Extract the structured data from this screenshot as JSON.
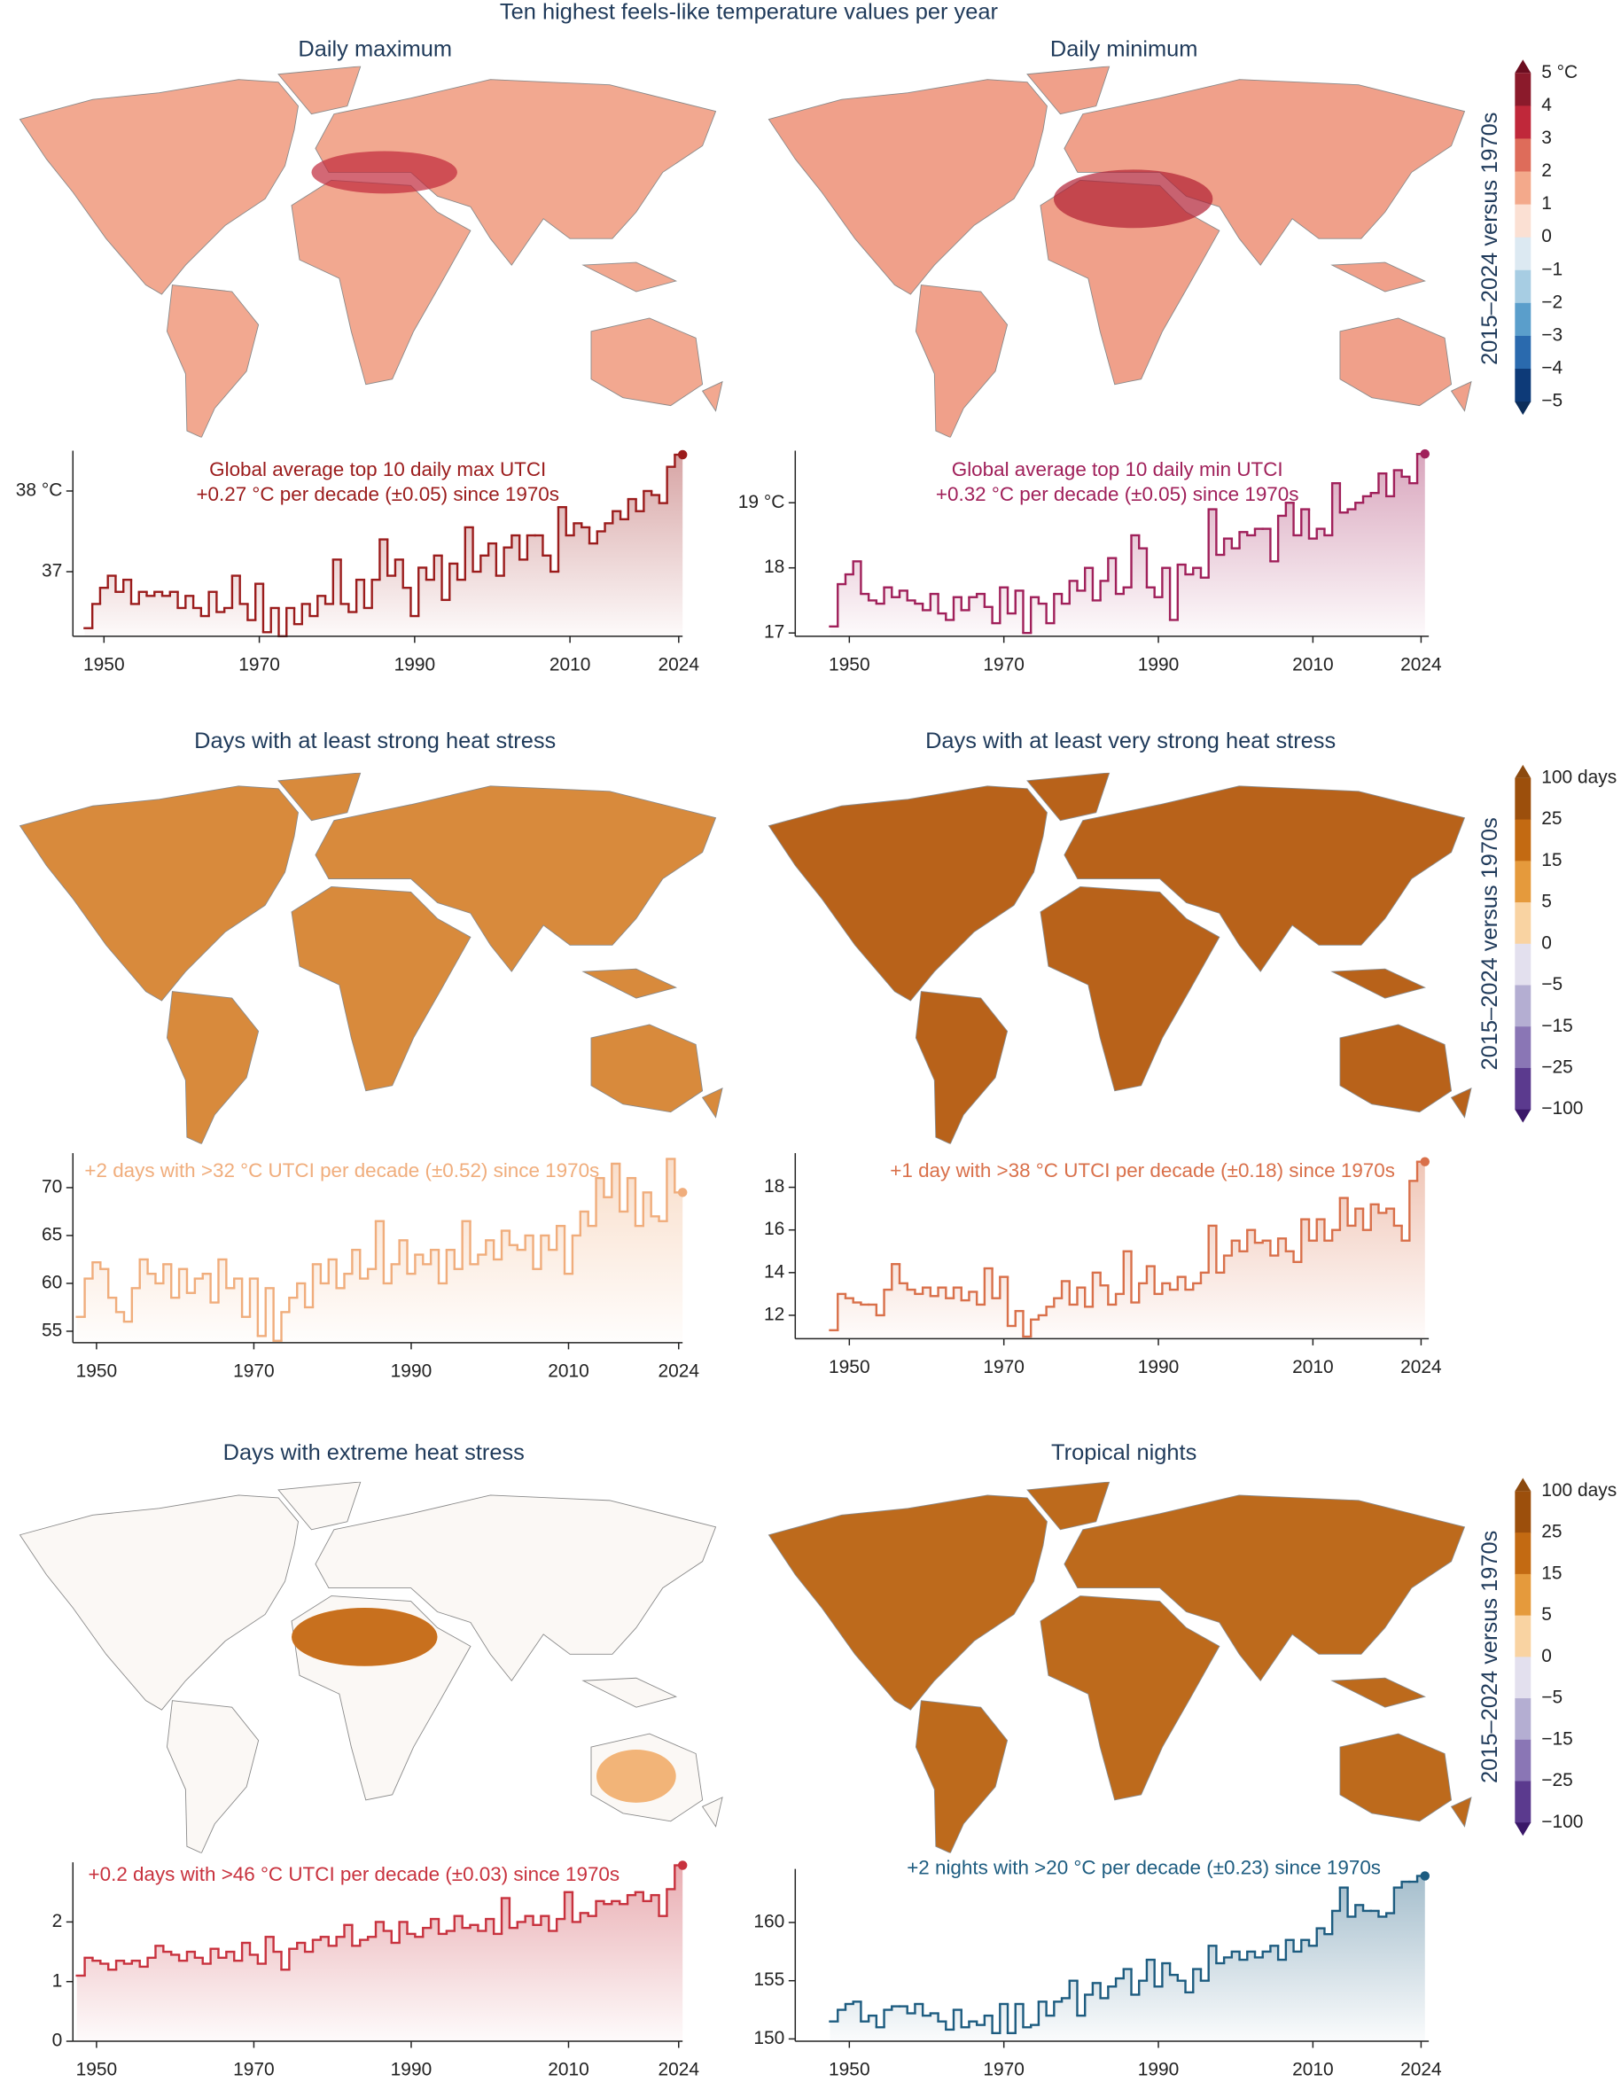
{
  "title": "Ten highest feels-like temperature values per year",
  "colorbars": [
    {
      "label": "2015–2024 versus 1970s",
      "ticks": [
        {
          "value": 5,
          "label": "5 °C"
        },
        4,
        3,
        2,
        1,
        0,
        {
          "value": -1,
          "label": "−1"
        },
        {
          "value": -2,
          "label": "−2"
        },
        {
          "value": -3,
          "label": "−3"
        },
        {
          "value": -4,
          "label": "−4"
        },
        {
          "value": -5,
          "label": "−5"
        }
      ],
      "colors": [
        "#6b0d1f",
        "#8b1a2b",
        "#c0283a",
        "#de6c5a",
        "#f3a98b",
        "#fbe0d3",
        "#dce9f2",
        "#a7cde3",
        "#5a9ecb",
        "#2a6aae",
        "#0d3a78",
        "#0b2d5a"
      ]
    },
    {
      "label": "2015–2024 versus 1970s",
      "ticks": [
        {
          "value": 100,
          "label": "100 days"
        },
        25,
        15,
        5,
        0,
        {
          "value": -5,
          "label": "−5"
        },
        {
          "value": -15,
          "label": "−15"
        },
        {
          "value": -25,
          "label": "−25"
        },
        {
          "value": -100,
          "label": "−100"
        }
      ],
      "colors": [
        "#8c4a0f",
        "#9c4f0c",
        "#c36a12",
        "#e59a3c",
        "#f9d3a2",
        "#e3e0ee",
        "#b4aed2",
        "#8a76b5",
        "#5b3a8e",
        "#3a1768"
      ]
    },
    {
      "label": "2015–2024 versus 1970s",
      "ticks": [
        {
          "value": 100,
          "label": "100 days"
        },
        25,
        15,
        5,
        0,
        {
          "value": -5,
          "label": "−5"
        },
        {
          "value": -15,
          "label": "−15"
        },
        {
          "value": -25,
          "label": "−25"
        },
        {
          "value": -100,
          "label": "−100"
        }
      ],
      "colors": [
        "#8c4a0f",
        "#9c4f0c",
        "#c36a12",
        "#e59a3c",
        "#f9d3a2",
        "#e3e0ee",
        "#b4aed2",
        "#8a76b5",
        "#5b3a8e",
        "#3a1768"
      ]
    }
  ],
  "chart_data": [
    {
      "type": "line",
      "title": "Daily maximum",
      "color": "#9b1c1c",
      "annotation": [
        "Global average top 10 daily max UTCI",
        "+0.27 °C per decade (±0.05) since 1970s"
      ],
      "x": [
        1948,
        1949,
        1950,
        1951,
        1952,
        1953,
        1954,
        1955,
        1956,
        1957,
        1958,
        1959,
        1960,
        1961,
        1962,
        1963,
        1964,
        1965,
        1966,
        1967,
        1968,
        1969,
        1970,
        1971,
        1972,
        1973,
        1974,
        1975,
        1976,
        1977,
        1978,
        1979,
        1980,
        1981,
        1982,
        1983,
        1984,
        1985,
        1986,
        1987,
        1988,
        1989,
        1990,
        1991,
        1992,
        1993,
        1994,
        1995,
        1996,
        1997,
        1998,
        1999,
        2000,
        2001,
        2002,
        2003,
        2004,
        2005,
        2006,
        2007,
        2008,
        2009,
        2010,
        2011,
        2012,
        2013,
        2014,
        2015,
        2016,
        2017,
        2018,
        2019,
        2020,
        2021,
        2022,
        2023,
        2024
      ],
      "values": [
        36.3,
        36.6,
        36.8,
        36.95,
        36.75,
        36.9,
        36.6,
        36.75,
        36.7,
        36.75,
        36.7,
        36.75,
        36.55,
        36.7,
        36.55,
        36.45,
        36.75,
        36.5,
        36.55,
        36.95,
        36.6,
        36.4,
        36.85,
        36.25,
        36.55,
        36.2,
        36.55,
        36.35,
        36.6,
        36.45,
        36.7,
        36.6,
        37.15,
        36.6,
        36.5,
        36.9,
        36.55,
        36.9,
        37.4,
        36.95,
        37.15,
        36.8,
        36.45,
        37.05,
        36.9,
        37.2,
        36.65,
        37.1,
        36.9,
        37.55,
        37.0,
        37.2,
        37.35,
        36.95,
        37.3,
        37.45,
        37.15,
        37.45,
        37.45,
        37.2,
        37.0,
        37.8,
        37.45,
        37.6,
        37.55,
        37.35,
        37.5,
        37.6,
        37.75,
        37.65,
        37.9,
        37.75,
        38.0,
        37.95,
        37.85,
        38.3,
        38.45
      ],
      "xlim": [
        1946,
        2024.5
      ],
      "ylim": [
        36.2,
        38.5
      ],
      "xticks": [
        1950,
        1970,
        1990,
        2010,
        2024
      ],
      "yticks": [
        37,
        {
          "value": 38,
          "label": "38 °C"
        }
      ]
    },
    {
      "type": "line",
      "title": "Daily minimum",
      "color": "#a0205a",
      "annotation": [
        "Global average top 10 daily min UTCI",
        "+0.32 °C per decade (±0.05) since 1970s"
      ],
      "x": [
        1948,
        1949,
        1950,
        1951,
        1952,
        1953,
        1954,
        1955,
        1956,
        1957,
        1958,
        1959,
        1960,
        1961,
        1962,
        1963,
        1964,
        1965,
        1966,
        1967,
        1968,
        1969,
        1970,
        1971,
        1972,
        1973,
        1974,
        1975,
        1976,
        1977,
        1978,
        1979,
        1980,
        1981,
        1982,
        1983,
        1984,
        1985,
        1986,
        1987,
        1988,
        1989,
        1990,
        1991,
        1992,
        1993,
        1994,
        1995,
        1996,
        1997,
        1998,
        1999,
        2000,
        2001,
        2002,
        2003,
        2004,
        2005,
        2006,
        2007,
        2008,
        2009,
        2010,
        2011,
        2012,
        2013,
        2014,
        2015,
        2016,
        2017,
        2018,
        2019,
        2020,
        2021,
        2022,
        2023,
        2024
      ],
      "values": [
        17.1,
        17.75,
        17.9,
        18.1,
        17.6,
        17.5,
        17.45,
        17.7,
        17.55,
        17.65,
        17.5,
        17.45,
        17.35,
        17.6,
        17.3,
        17.2,
        17.55,
        17.35,
        17.55,
        17.6,
        17.4,
        17.15,
        17.7,
        17.3,
        17.65,
        17.0,
        17.55,
        17.45,
        17.15,
        17.6,
        17.45,
        17.8,
        17.65,
        18.0,
        17.5,
        17.8,
        18.15,
        17.6,
        17.7,
        18.5,
        18.3,
        17.7,
        17.55,
        18.0,
        17.2,
        18.05,
        17.9,
        18.0,
        17.85,
        18.9,
        18.2,
        18.45,
        18.3,
        18.55,
        18.5,
        18.6,
        18.6,
        18.1,
        18.8,
        19.0,
        18.5,
        18.9,
        18.45,
        18.6,
        18.5,
        19.3,
        18.85,
        18.9,
        19.0,
        19.1,
        19.15,
        19.45,
        19.1,
        19.5,
        19.4,
        19.3,
        19.75
      ],
      "xlim": [
        1943,
        2025
      ],
      "ylim": [
        16.95,
        19.8
      ],
      "xticks": [
        1950,
        1970,
        1990,
        2010,
        2024
      ],
      "yticks": [
        17,
        18,
        {
          "value": 19,
          "label": "19 °C"
        }
      ]
    },
    {
      "type": "line",
      "title": "Days with at least strong heat stress",
      "color": "#f0ad7c",
      "annotation": [
        "+2 days with >32 °C UTCI per decade (±0.52) since 1970s"
      ],
      "x": [
        1948,
        1949,
        1950,
        1951,
        1952,
        1953,
        1954,
        1955,
        1956,
        1957,
        1958,
        1959,
        1960,
        1961,
        1962,
        1963,
        1964,
        1965,
        1966,
        1967,
        1968,
        1969,
        1970,
        1971,
        1972,
        1973,
        1974,
        1975,
        1976,
        1977,
        1978,
        1979,
        1980,
        1981,
        1982,
        1983,
        1984,
        1985,
        1986,
        1987,
        1988,
        1989,
        1990,
        1991,
        1992,
        1993,
        1994,
        1995,
        1996,
        1997,
        1998,
        1999,
        2000,
        2001,
        2002,
        2003,
        2004,
        2005,
        2006,
        2007,
        2008,
        2009,
        2010,
        2011,
        2012,
        2013,
        2014,
        2015,
        2016,
        2017,
        2018,
        2019,
        2020,
        2021,
        2022,
        2023,
        2024
      ],
      "values": [
        56.5,
        60.5,
        62.2,
        61.5,
        58.5,
        57.0,
        56.0,
        59.5,
        62.5,
        61.0,
        60.0,
        62.0,
        58.5,
        61.5,
        59.0,
        60.5,
        61.0,
        58.0,
        62.5,
        59.5,
        60.5,
        56.5,
        60.5,
        54.5,
        59.5,
        54.0,
        57.0,
        58.5,
        60.0,
        57.5,
        62.0,
        60.0,
        62.5,
        59.5,
        61.0,
        63.5,
        60.5,
        61.5,
        66.5,
        60.0,
        62.0,
        64.5,
        61.0,
        63.0,
        62.0,
        63.5,
        60.0,
        63.5,
        61.5,
        66.5,
        62.0,
        63.0,
        64.5,
        62.5,
        65.5,
        64.0,
        63.5,
        65.0,
        61.5,
        65.0,
        63.5,
        66.0,
        61.0,
        65.0,
        67.5,
        66.0,
        71.0,
        69.0,
        72.5,
        67.5,
        71.0,
        66.0,
        69.5,
        67.0,
        66.5,
        73.0,
        69.5
      ],
      "xlim": [
        1947,
        2024.5
      ],
      "ylim": [
        53.8,
        73.6
      ],
      "xticks": [
        1950,
        1970,
        1990,
        2010,
        2024
      ],
      "yticks": [
        55,
        60,
        65,
        70
      ]
    },
    {
      "type": "line",
      "title": "Days with at least very strong heat stress",
      "color": "#d9704a",
      "annotation": [
        "+1 day with >38 °C UTCI per decade (±0.18) since 1970s"
      ],
      "x": [
        1948,
        1949,
        1950,
        1951,
        1952,
        1953,
        1954,
        1955,
        1956,
        1957,
        1958,
        1959,
        1960,
        1961,
        1962,
        1963,
        1964,
        1965,
        1966,
        1967,
        1968,
        1969,
        1970,
        1971,
        1972,
        1973,
        1974,
        1975,
        1976,
        1977,
        1978,
        1979,
        1980,
        1981,
        1982,
        1983,
        1984,
        1985,
        1986,
        1987,
        1988,
        1989,
        1990,
        1991,
        1992,
        1993,
        1994,
        1995,
        1996,
        1997,
        1998,
        1999,
        2000,
        2001,
        2002,
        2003,
        2004,
        2005,
        2006,
        2007,
        2008,
        2009,
        2010,
        2011,
        2012,
        2013,
        2014,
        2015,
        2016,
        2017,
        2018,
        2019,
        2020,
        2021,
        2022,
        2023,
        2024
      ],
      "values": [
        11.3,
        13.0,
        12.8,
        12.6,
        12.5,
        12.5,
        12.0,
        13.2,
        14.4,
        13.5,
        13.2,
        13.0,
        13.3,
        12.9,
        13.3,
        12.8,
        13.3,
        12.7,
        13.1,
        12.5,
        14.2,
        12.8,
        13.8,
        11.5,
        12.2,
        11.0,
        11.8,
        12.0,
        12.4,
        12.8,
        13.6,
        12.5,
        13.3,
        12.4,
        14.0,
        13.4,
        12.5,
        13.0,
        15.0,
        12.6,
        13.5,
        14.3,
        13.0,
        13.5,
        13.2,
        13.8,
        13.2,
        13.5,
        14.0,
        16.2,
        14.0,
        14.8,
        15.5,
        15.0,
        16.0,
        15.4,
        15.5,
        14.8,
        15.6,
        15.0,
        14.5,
        16.5,
        15.5,
        16.5,
        15.5,
        16.0,
        17.5,
        16.2,
        17.0,
        16.0,
        17.2,
        16.8,
        17.0,
        16.2,
        15.5,
        18.3,
        19.2
      ],
      "xlim": [
        1943,
        2025
      ],
      "ylim": [
        10.9,
        19.6
      ],
      "xticks": [
        1950,
        1970,
        1990,
        2010,
        2024
      ],
      "yticks": [
        12,
        14,
        16,
        18
      ]
    },
    {
      "type": "line",
      "title": "Days with extreme heat stress",
      "color": "#c8323e",
      "annotation": [
        "+0.2 days with >46 °C UTCI per decade (±0.03) since 1970s"
      ],
      "x": [
        1948,
        1949,
        1950,
        1951,
        1952,
        1953,
        1954,
        1955,
        1956,
        1957,
        1958,
        1959,
        1960,
        1961,
        1962,
        1963,
        1964,
        1965,
        1966,
        1967,
        1968,
        1969,
        1970,
        1971,
        1972,
        1973,
        1974,
        1975,
        1976,
        1977,
        1978,
        1979,
        1980,
        1981,
        1982,
        1983,
        1984,
        1985,
        1986,
        1987,
        1988,
        1989,
        1990,
        1991,
        1992,
        1993,
        1994,
        1995,
        1996,
        1997,
        1998,
        1999,
        2000,
        2001,
        2002,
        2003,
        2004,
        2005,
        2006,
        2007,
        2008,
        2009,
        2010,
        2011,
        2012,
        2013,
        2014,
        2015,
        2016,
        2017,
        2018,
        2019,
        2020,
        2021,
        2022,
        2023,
        2024
      ],
      "values": [
        1.1,
        1.4,
        1.35,
        1.3,
        1.2,
        1.35,
        1.3,
        1.35,
        1.25,
        1.4,
        1.6,
        1.5,
        1.45,
        1.35,
        1.5,
        1.4,
        1.3,
        1.55,
        1.4,
        1.5,
        1.35,
        1.65,
        1.45,
        1.3,
        1.75,
        1.5,
        1.2,
        1.55,
        1.65,
        1.5,
        1.7,
        1.75,
        1.6,
        1.75,
        1.95,
        1.6,
        1.7,
        1.75,
        2.0,
        1.85,
        1.65,
        2.0,
        1.8,
        1.75,
        1.9,
        2.05,
        1.8,
        1.85,
        2.1,
        1.9,
        1.95,
        1.85,
        2.05,
        1.8,
        2.4,
        1.9,
        2.0,
        2.1,
        1.95,
        2.1,
        1.85,
        2.05,
        2.5,
        2.0,
        2.15,
        2.1,
        2.35,
        2.3,
        2.35,
        2.3,
        2.45,
        2.5,
        2.35,
        2.45,
        2.1,
        2.55,
        2.95
      ],
      "xlim": [
        1947,
        2024.5
      ],
      "ylim": [
        0,
        3
      ],
      "xticks": [
        1950,
        1970,
        1990,
        2010,
        2024
      ],
      "yticks": [
        0,
        1,
        2
      ]
    },
    {
      "type": "line",
      "title": "Tropical nights",
      "color": "#1d5c80",
      "annotation": [
        "+2 nights with >20 °C per decade (±0.23) since 1970s"
      ],
      "x": [
        1948,
        1949,
        1950,
        1951,
        1952,
        1953,
        1954,
        1955,
        1956,
        1957,
        1958,
        1959,
        1960,
        1961,
        1962,
        1963,
        1964,
        1965,
        1966,
        1967,
        1968,
        1969,
        1970,
        1971,
        1972,
        1973,
        1974,
        1975,
        1976,
        1977,
        1978,
        1979,
        1980,
        1981,
        1982,
        1983,
        1984,
        1985,
        1986,
        1987,
        1988,
        1989,
        1990,
        1991,
        1992,
        1993,
        1994,
        1995,
        1996,
        1997,
        1998,
        1999,
        2000,
        2001,
        2002,
        2003,
        2004,
        2005,
        2006,
        2007,
        2008,
        2009,
        2010,
        2011,
        2012,
        2013,
        2014,
        2015,
        2016,
        2017,
        2018,
        2019,
        2020,
        2021,
        2022,
        2023,
        2024
      ],
      "values": [
        151.5,
        152.5,
        153.0,
        153.2,
        151.5,
        152.0,
        151.0,
        152.5,
        152.8,
        152.8,
        152.2,
        153.0,
        152.0,
        152.2,
        151.5,
        150.8,
        152.5,
        151.0,
        151.5,
        151.2,
        152.0,
        150.5,
        153.0,
        150.5,
        153.0,
        151.0,
        151.2,
        153.2,
        152.0,
        153.2,
        153.5,
        155.0,
        152.0,
        153.8,
        154.8,
        153.5,
        154.5,
        155.2,
        156.0,
        153.8,
        155.0,
        156.8,
        154.5,
        156.5,
        155.5,
        155.0,
        154.0,
        156.0,
        155.0,
        158.0,
        156.5,
        157.0,
        157.5,
        156.8,
        157.5,
        157.0,
        157.5,
        158.0,
        156.8,
        158.5,
        157.5,
        158.5,
        158.0,
        159.5,
        159.0,
        161.0,
        163.0,
        160.5,
        161.5,
        161.0,
        161.0,
        160.5,
        160.8,
        163.0,
        163.5,
        163.5,
        164.0
      ],
      "xlim": [
        1943,
        2025
      ],
      "ylim": [
        149.8,
        164.6
      ],
      "xticks": [
        1950,
        1970,
        1990,
        2010,
        2024
      ],
      "yticks": [
        150,
        155,
        160
      ]
    }
  ]
}
